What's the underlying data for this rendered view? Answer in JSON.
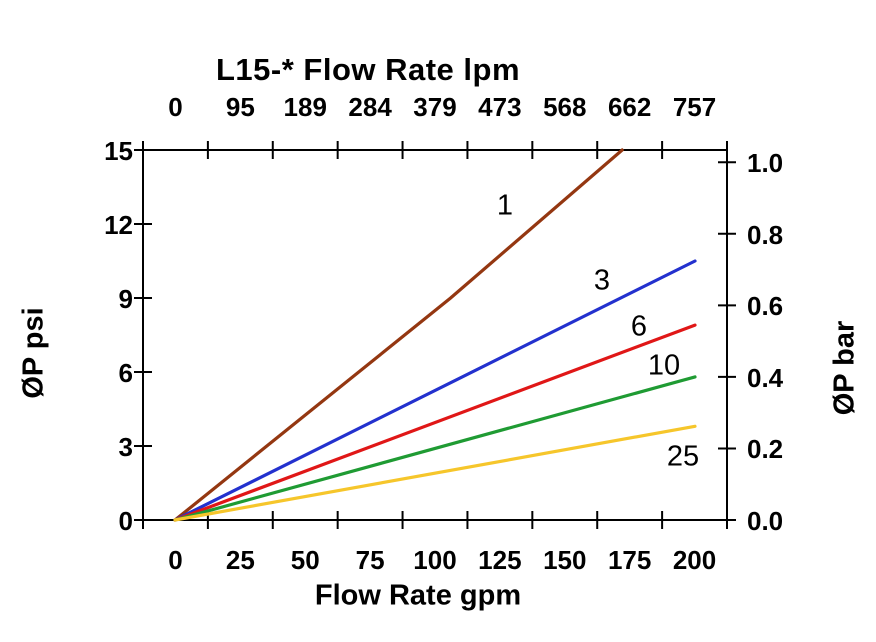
{
  "title": "L15-* Flow Rate lpm",
  "axes": {
    "top": {
      "tick_labels": [
        "0",
        "95",
        "189",
        "284",
        "379",
        "473",
        "568",
        "662",
        "757"
      ]
    },
    "bottom": {
      "title": "Flow Rate gpm",
      "tick_labels": [
        "0",
        "25",
        "50",
        "75",
        "100",
        "125",
        "150",
        "175",
        "200"
      ]
    },
    "left": {
      "title": "ØP psi",
      "tick_labels": [
        "0",
        "3",
        "6",
        "9",
        "12",
        "15"
      ]
    },
    "right": {
      "title": "ØP bar",
      "tick_labels": [
        "0.0",
        "0.2",
        "0.4",
        "0.6",
        "0.8",
        "1.0"
      ]
    }
  },
  "chart_data": {
    "type": "line",
    "title": "L15-* Flow Rate lpm",
    "xlabel_bottom": "Flow Rate gpm",
    "xlabel_top_units": "lpm",
    "ylabel_left": "ØP psi",
    "ylabel_right": "ØP bar",
    "x_range_gpm": [
      0,
      200
    ],
    "y_range_psi": [
      0,
      15
    ],
    "y_range_bar": [
      0.0,
      1.0
    ],
    "x_bottom_gpm_ticks": [
      0,
      25,
      50,
      75,
      100,
      125,
      150,
      175,
      200
    ],
    "x_top_lpm_ticks": [
      0,
      95,
      189,
      284,
      379,
      473,
      568,
      662,
      757
    ],
    "y_left_psi_ticks": [
      0,
      3,
      6,
      9,
      12,
      15
    ],
    "y_right_bar_ticks": [
      0.0,
      0.2,
      0.4,
      0.6,
      0.8,
      1.0
    ],
    "grid": false,
    "legend_position": "inline-curve-labels",
    "series": [
      {
        "label": "1",
        "color": "#943711",
        "points_gpm_psi": [
          [
            0,
            0
          ],
          [
            106,
            9.0
          ],
          [
            172,
            15.0
          ]
        ],
        "clipped_at_ymax": true
      },
      {
        "label": "3",
        "color": "#2331CE",
        "points_gpm_psi": [
          [
            0,
            0
          ],
          [
            200,
            10.5
          ]
        ]
      },
      {
        "label": "6",
        "color": "#E01717",
        "points_gpm_psi": [
          [
            0,
            0
          ],
          [
            200,
            7.9
          ]
        ]
      },
      {
        "label": "10",
        "color": "#1F9B33",
        "points_gpm_psi": [
          [
            0,
            0
          ],
          [
            200,
            5.8
          ]
        ]
      },
      {
        "label": "25",
        "color": "#F6C62B",
        "points_gpm_psi": [
          [
            0,
            0
          ],
          [
            200,
            3.8
          ]
        ]
      }
    ]
  }
}
